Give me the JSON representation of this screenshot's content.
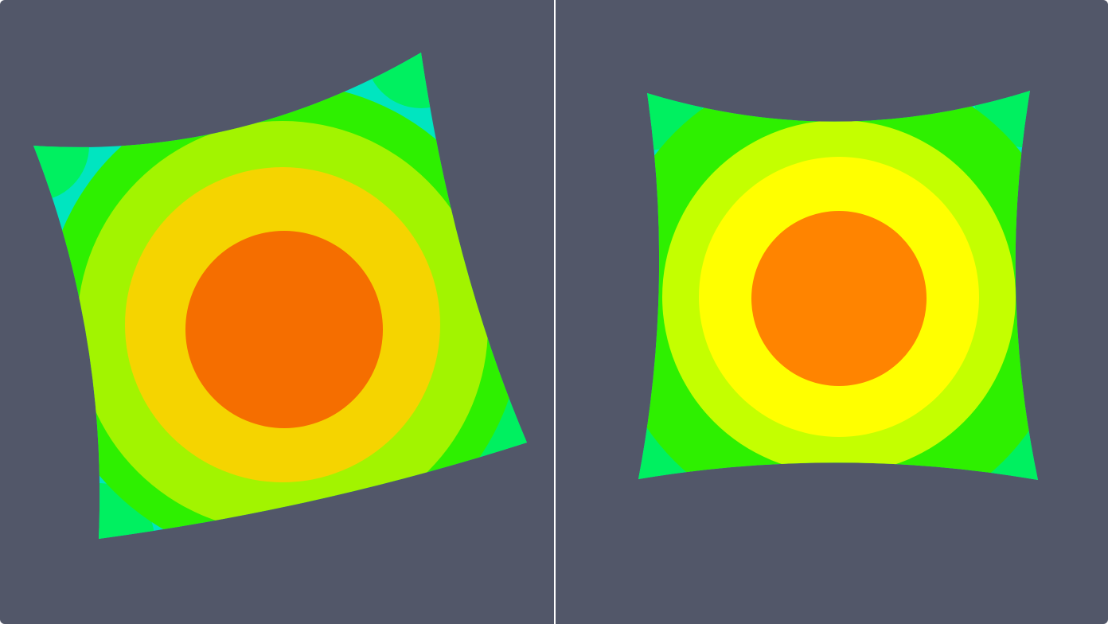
{
  "colors": {
    "background": "#525769",
    "divider": "#ffffff",
    "left_view": {
      "edge": "#00e5c0",
      "corner": "#00f060",
      "band_outer": "#2ef000",
      "band_mid": "#a2f400",
      "band_inner": "#f5d400",
      "core": "#f56e00"
    },
    "right_view": {
      "edge": "#00e5c0",
      "corner": "#00f060",
      "band_outer": "#2ef000",
      "band_mid": "#c4ff00",
      "band_inner": "#ffff00",
      "core": "#ff8400"
    }
  },
  "views": [
    {
      "name": "left-viewport",
      "rotation_deg": -12
    },
    {
      "name": "right-viewport",
      "rotation_deg": 0
    }
  ]
}
